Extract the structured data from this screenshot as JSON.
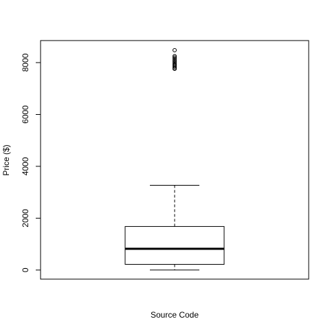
{
  "chart_data": {
    "type": "boxplot",
    "title": "",
    "xlabel": "Source Code",
    "ylabel": "Price ($)",
    "ylim": [
      -350,
      8850
    ],
    "yticks": [
      0,
      2000,
      4000,
      6000,
      8000
    ],
    "grid": false,
    "box": {
      "min": 0,
      "q1": 220,
      "median": 820,
      "q3": 1680,
      "max": 3270
    },
    "outliers": [
      7760,
      7800,
      7850,
      7900,
      7940,
      7990,
      8040,
      8090,
      8150,
      8200,
      8250,
      8480
    ],
    "colors": {
      "box_fill": "#ffffff",
      "line": "#000000",
      "background": "#ffffff"
    }
  }
}
